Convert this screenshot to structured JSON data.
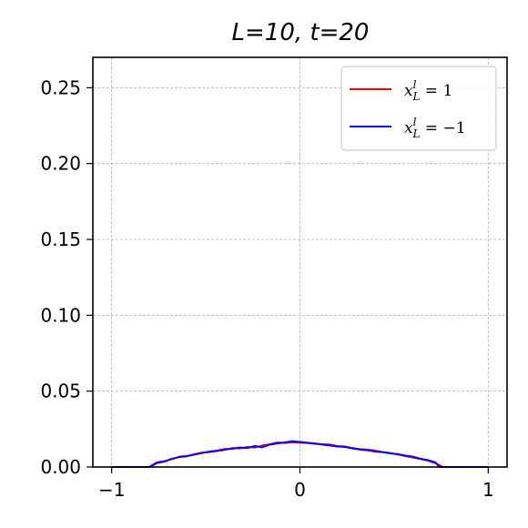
{
  "chart_data": {
    "type": "line",
    "title": "L=10, t=20",
    "xlabel": "",
    "ylabel": "",
    "xlim": [
      -1.1,
      1.1
    ],
    "ylim": [
      0,
      0.27
    ],
    "x_ticks": [
      -1,
      0,
      1
    ],
    "x_tick_labels": [
      "−1",
      "0",
      "1"
    ],
    "y_ticks": [
      0.0,
      0.05,
      0.1,
      0.15,
      0.2,
      0.25
    ],
    "y_tick_labels": [
      "0.00",
      "0.05",
      "0.10",
      "0.15",
      "0.20",
      "0.25"
    ],
    "grid": true,
    "legend_position": "top-right",
    "series": [
      {
        "name": "x_L^l = 1",
        "legend_main": "x",
        "legend_sup": "l",
        "legend_sub": "L",
        "legend_rest": " = 1",
        "color": "#ff0000",
        "x": [
          -1.0,
          -0.8,
          -0.76,
          -0.72,
          -0.68,
          -0.64,
          -0.6,
          -0.56,
          -0.52,
          -0.48,
          -0.44,
          -0.4,
          -0.36,
          -0.32,
          -0.28,
          -0.24,
          -0.2,
          -0.16,
          -0.12,
          -0.08,
          -0.04,
          0.0,
          0.04,
          0.08,
          0.12,
          0.16,
          0.2,
          0.24,
          0.28,
          0.32,
          0.36,
          0.4,
          0.44,
          0.48,
          0.52,
          0.56,
          0.6,
          0.64,
          0.68,
          0.72,
          0.76,
          1.0
        ],
        "y": [
          0.0,
          0.0,
          0.0025,
          0.0035,
          0.0055,
          0.0065,
          0.007,
          0.0085,
          0.0095,
          0.0098,
          0.0105,
          0.0112,
          0.0125,
          0.0122,
          0.0132,
          0.0128,
          0.0142,
          0.015,
          0.0162,
          0.0158,
          0.0163,
          0.016,
          0.0158,
          0.0152,
          0.015,
          0.0148,
          0.0138,
          0.0135,
          0.0125,
          0.0118,
          0.0115,
          0.0108,
          0.0098,
          0.0092,
          0.0082,
          0.0072,
          0.0062,
          0.0052,
          0.0042,
          0.0025,
          0.0,
          0.0
        ]
      },
      {
        "name": "x_L^l = -1",
        "legend_main": "x",
        "legend_sup": "l",
        "legend_sub": "L",
        "legend_rest": " = −1",
        "color": "#0000ff",
        "x": [
          -1.0,
          -0.8,
          -0.76,
          -0.72,
          -0.68,
          -0.64,
          -0.6,
          -0.56,
          -0.52,
          -0.48,
          -0.44,
          -0.4,
          -0.36,
          -0.32,
          -0.28,
          -0.24,
          -0.2,
          -0.16,
          -0.12,
          -0.08,
          -0.04,
          0.0,
          0.04,
          0.08,
          0.12,
          0.16,
          0.2,
          0.24,
          0.28,
          0.32,
          0.36,
          0.4,
          0.44,
          0.48,
          0.52,
          0.56,
          0.6,
          0.64,
          0.68,
          0.72,
          0.74,
          1.0
        ],
        "y": [
          0.0,
          0.0,
          0.003,
          0.0038,
          0.0052,
          0.0068,
          0.0072,
          0.0082,
          0.0092,
          0.0102,
          0.0108,
          0.0118,
          0.012,
          0.0128,
          0.0125,
          0.0138,
          0.013,
          0.0148,
          0.0155,
          0.0162,
          0.017,
          0.0165,
          0.016,
          0.0155,
          0.0148,
          0.0142,
          0.0135,
          0.0132,
          0.0122,
          0.0115,
          0.011,
          0.0102,
          0.0098,
          0.009,
          0.0085,
          0.0075,
          0.0068,
          0.0055,
          0.0045,
          0.003,
          0.0,
          0.0
        ]
      }
    ]
  }
}
